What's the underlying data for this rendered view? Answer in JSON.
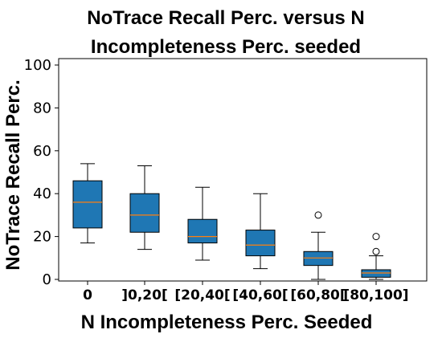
{
  "chart_data": {
    "type": "box",
    "title_lines": [
      "NoTrace Recall Perc. versus N",
      "Incompleteness Perc. seeded"
    ],
    "xlabel": "N Incompleteness Perc. Seeded",
    "ylabel": "NoTrace Recall Perc.",
    "ylim": [
      0,
      100
    ],
    "yticks": [
      0,
      20,
      40,
      60,
      80,
      100
    ],
    "categories": [
      "0",
      "]0,20[",
      "[20,40[",
      "[40,60[",
      "[60,80[",
      "[80,100]"
    ],
    "boxes": [
      {
        "whisker_low": 17,
        "q1": 24,
        "median": 36,
        "q3": 46,
        "whisker_high": 54,
        "outliers": []
      },
      {
        "whisker_low": 14,
        "q1": 22,
        "median": 30,
        "q3": 40,
        "whisker_high": 53,
        "outliers": []
      },
      {
        "whisker_low": 9,
        "q1": 17,
        "median": 20,
        "q3": 28,
        "whisker_high": 43,
        "outliers": []
      },
      {
        "whisker_low": 5,
        "q1": 11,
        "median": 16,
        "q3": 23,
        "whisker_high": 40,
        "outliers": []
      },
      {
        "whisker_low": 0,
        "q1": 6.5,
        "median": 10,
        "q3": 13,
        "whisker_high": 22,
        "outliers": [
          30
        ]
      },
      {
        "whisker_low": 0,
        "q1": 1,
        "median": 3,
        "q3": 4.5,
        "whisker_high": 11,
        "outliers": [
          13,
          20
        ]
      }
    ],
    "box_color": "#1f77b4",
    "median_color": "#ff7f0e",
    "grid": false
  }
}
